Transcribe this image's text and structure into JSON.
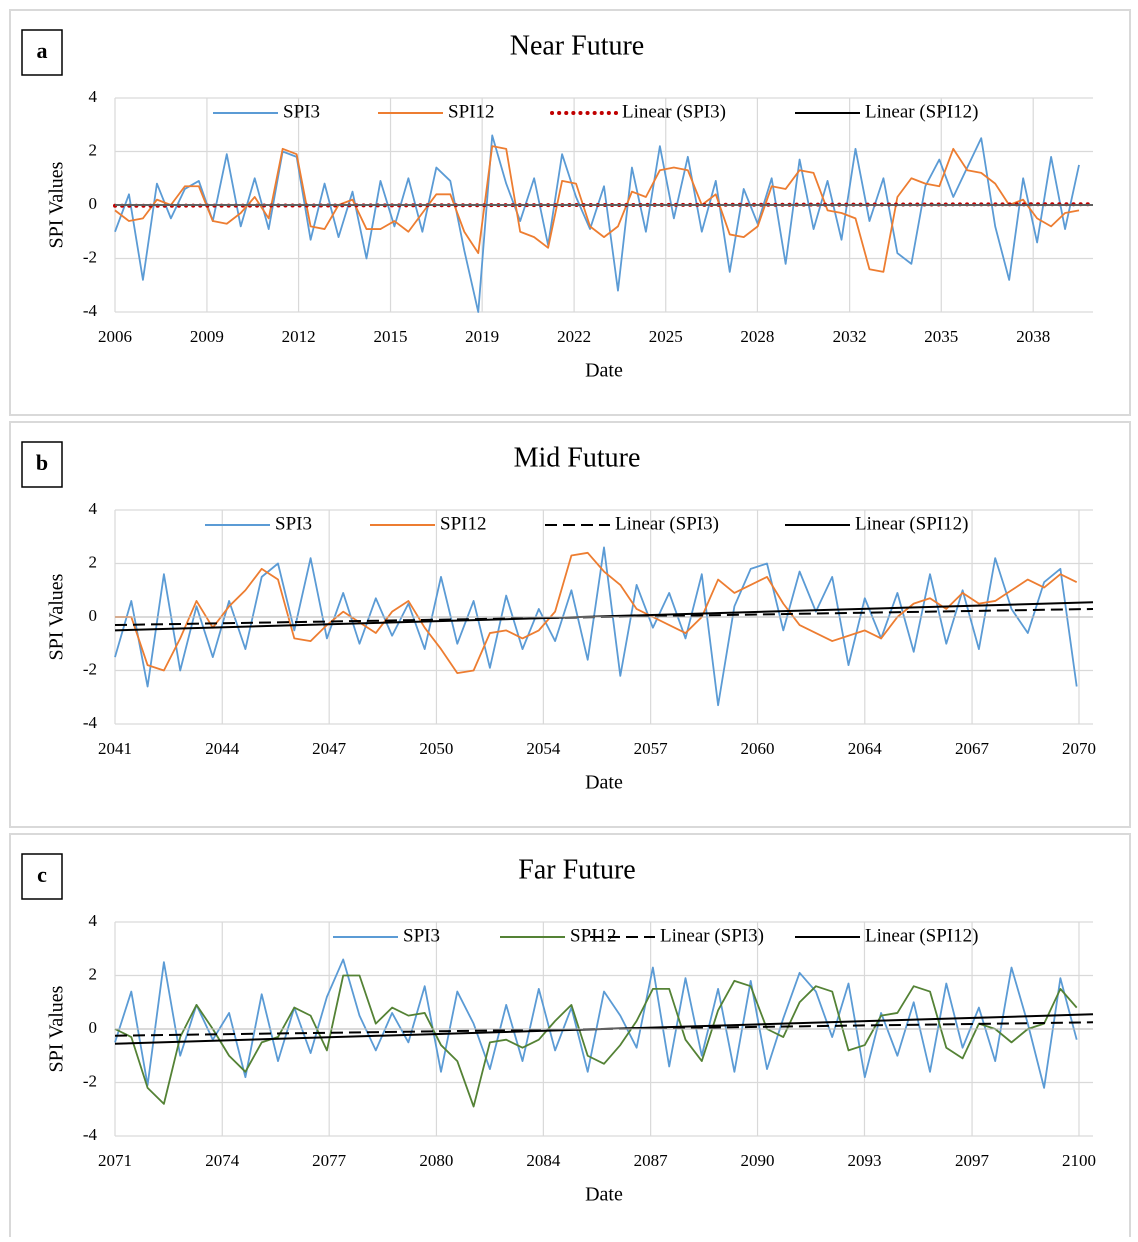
{
  "chart_data": [
    {
      "type": "line",
      "panel_label": "a",
      "title": "Near Future",
      "x_label": "Date",
      "y_label": "SPI Values",
      "xlim": [
        2006,
        2041
      ],
      "ylim": [
        -4,
        4
      ],
      "yticks": [
        -4,
        -2,
        0,
        2,
        4
      ],
      "grid": true,
      "xticks": [
        2006,
        {
          "value": 2009.29,
          "label": "2009"
        },
        {
          "value": 2012.57,
          "label": "2012"
        },
        {
          "value": 2015.86,
          "label": "2015"
        },
        {
          "value": 2019.14,
          "label": "2019"
        },
        {
          "value": 2022.43,
          "label": "2022"
        },
        {
          "value": 2025.71,
          "label": "2025"
        },
        {
          "value": 2028.99,
          "label": "2028"
        },
        {
          "value": 2032.29,
          "label": "2032"
        },
        {
          "value": 2035.57,
          "label": "2035"
        },
        {
          "value": 2038.86,
          "label": "2038"
        }
      ],
      "x": [
        2006.0,
        2006.5,
        2007.0,
        2007.5,
        2008.0,
        2008.5,
        2009.0,
        2009.5,
        2010.0,
        2010.5,
        2011.0,
        2011.5,
        2012.0,
        2012.5,
        2013.0,
        2013.5,
        2014.0,
        2014.5,
        2015.0,
        2015.5,
        2016.0,
        2016.5,
        2017.0,
        2017.5,
        2018.0,
        2018.5,
        2019.0,
        2019.5,
        2020.0,
        2020.5,
        2021.0,
        2021.5,
        2022.0,
        2022.5,
        2023.0,
        2023.5,
        2024.0,
        2024.5,
        2025.0,
        2025.5,
        2026.0,
        2026.5,
        2027.0,
        2027.5,
        2028.0,
        2028.5,
        2029.0,
        2029.5,
        2030.0,
        2030.5,
        2031.0,
        2031.5,
        2032.0,
        2032.5,
        2033.0,
        2033.5,
        2034.0,
        2034.5,
        2035.0,
        2035.5,
        2036.0,
        2036.5,
        2037.0,
        2037.5,
        2038.0,
        2038.5,
        2039.0,
        2039.5,
        2040.0,
        2040.5
      ],
      "series": [
        {
          "name": "SPI3",
          "color": "#5b9bd5",
          "dash": "solid",
          "values": [
            -1.0,
            0.4,
            -2.8,
            0.8,
            -0.5,
            0.6,
            0.9,
            -0.6,
            1.9,
            -0.8,
            1.0,
            -0.9,
            2.0,
            1.8,
            -1.3,
            0.8,
            -1.2,
            0.5,
            -2.0,
            0.9,
            -0.8,
            1.0,
            -1.0,
            1.4,
            0.9,
            -1.7,
            -4.0,
            2.6,
            0.8,
            -0.6,
            1.0,
            -1.5,
            1.9,
            0.3,
            -0.9,
            0.7,
            -3.2,
            1.4,
            -1.0,
            2.2,
            -0.5,
            1.8,
            -1.0,
            0.9,
            -2.5,
            0.6,
            -0.7,
            1.0,
            -2.2,
            1.7,
            -0.9,
            0.9,
            -1.3,
            2.1,
            -0.6,
            1.0,
            -1.8,
            -2.2,
            0.7,
            1.7,
            0.3,
            1.4,
            2.5,
            -0.8,
            -2.8,
            1.0,
            -1.4,
            1.8,
            -0.9,
            1.5
          ]
        },
        {
          "name": "SPI12",
          "color": "#ed7d31",
          "dash": "solid",
          "values": [
            -0.2,
            -0.6,
            -0.5,
            0.2,
            0.0,
            0.7,
            0.7,
            -0.6,
            -0.7,
            -0.3,
            0.3,
            -0.5,
            2.1,
            1.9,
            -0.8,
            -0.9,
            0.0,
            0.2,
            -0.9,
            -0.9,
            -0.6,
            -1.0,
            -0.3,
            0.4,
            0.4,
            -1.0,
            -1.8,
            2.2,
            2.1,
            -1.0,
            -1.2,
            -1.6,
            0.9,
            0.8,
            -0.8,
            -1.2,
            -0.8,
            0.5,
            0.3,
            1.3,
            1.4,
            1.3,
            0.0,
            0.4,
            -1.1,
            -1.2,
            -0.8,
            0.7,
            0.6,
            1.3,
            1.2,
            -0.2,
            -0.3,
            -0.5,
            -2.4,
            -2.5,
            0.3,
            1.0,
            0.8,
            0.7,
            2.1,
            1.3,
            1.2,
            0.8,
            0.0,
            0.2,
            -0.5,
            -0.8,
            -0.3,
            -0.2
          ]
        },
        {
          "name": "Linear (SPI3)",
          "color": "#c00000",
          "dash": "dotted",
          "x": [
            2006,
            2041
          ],
          "values": [
            -0.03,
            0.03
          ]
        },
        {
          "name": "Linear (SPI12)",
          "color": "#000000",
          "dash": "solid",
          "x": [
            2006,
            2041
          ],
          "values": [
            0.0,
            0.0
          ]
        }
      ]
    },
    {
      "type": "line",
      "panel_label": "b",
      "title": "Mid Future",
      "x_label": "Date",
      "y_label": "SPI Values",
      "xlim": [
        2041,
        2071
      ],
      "ylim": [
        -4,
        4
      ],
      "yticks": [
        -4,
        -2,
        0,
        2,
        4
      ],
      "grid": true,
      "xticks": [
        2041,
        {
          "value": 2044.29,
          "label": "2044"
        },
        {
          "value": 2047.57,
          "label": "2047"
        },
        {
          "value": 2050.86,
          "label": "2050"
        },
        {
          "value": 2054.14,
          "label": "2054"
        },
        {
          "value": 2057.43,
          "label": "2057"
        },
        {
          "value": 2060.71,
          "label": "2060"
        },
        2064,
        {
          "value": 2067.29,
          "label": "2067"
        },
        {
          "value": 2070.57,
          "label": "2070"
        }
      ],
      "x": [
        2041.0,
        2041.5,
        2042.0,
        2042.5,
        2043.0,
        2043.5,
        2044.0,
        2044.5,
        2045.0,
        2045.5,
        2046.0,
        2046.5,
        2047.0,
        2047.5,
        2048.0,
        2048.5,
        2049.0,
        2049.5,
        2050.0,
        2050.5,
        2051.0,
        2051.5,
        2052.0,
        2052.5,
        2053.0,
        2053.5,
        2054.0,
        2054.5,
        2055.0,
        2055.5,
        2056.0,
        2056.5,
        2057.0,
        2057.5,
        2058.0,
        2058.5,
        2059.0,
        2059.5,
        2060.0,
        2060.5,
        2061.0,
        2061.5,
        2062.0,
        2062.5,
        2063.0,
        2063.5,
        2064.0,
        2064.5,
        2065.0,
        2065.5,
        2066.0,
        2066.5,
        2067.0,
        2067.5,
        2068.0,
        2068.5,
        2069.0,
        2069.5,
        2070.0,
        2070.5
      ],
      "series": [
        {
          "name": "SPI3",
          "color": "#5b9bd5",
          "dash": "solid",
          "values": [
            -1.5,
            0.6,
            -2.6,
            1.6,
            -2.0,
            0.4,
            -1.5,
            0.6,
            -1.2,
            1.5,
            2.0,
            -0.5,
            2.2,
            -0.8,
            0.9,
            -1.0,
            0.7,
            -0.7,
            0.5,
            -1.2,
            1.5,
            -1.0,
            0.6,
            -1.9,
            0.8,
            -1.2,
            0.3,
            -0.9,
            1.0,
            -1.6,
            2.6,
            -2.2,
            1.2,
            -0.4,
            0.9,
            -0.8,
            1.6,
            -3.3,
            0.4,
            1.8,
            2.0,
            -0.5,
            1.7,
            0.2,
            1.5,
            -1.8,
            0.7,
            -0.8,
            0.9,
            -1.3,
            1.6,
            -1.0,
            1.0,
            -1.2,
            2.2,
            0.3,
            -0.6,
            1.3,
            1.8,
            -2.6
          ]
        },
        {
          "name": "SPI12",
          "color": "#ed7d31",
          "dash": "solid",
          "values": [
            0.0,
            0.0,
            -1.8,
            -2.0,
            -0.8,
            0.6,
            -0.4,
            0.4,
            1.0,
            1.8,
            1.4,
            -0.8,
            -0.9,
            -0.3,
            0.2,
            -0.2,
            -0.6,
            0.2,
            0.6,
            -0.4,
            -1.2,
            -2.1,
            -2.0,
            -0.6,
            -0.5,
            -0.8,
            -0.5,
            0.2,
            2.3,
            2.4,
            1.7,
            1.2,
            0.3,
            0.0,
            -0.3,
            -0.6,
            0.0,
            1.4,
            0.9,
            1.2,
            1.5,
            0.5,
            -0.3,
            -0.6,
            -0.9,
            -0.7,
            -0.5,
            -0.8,
            0.0,
            0.5,
            0.7,
            0.3,
            0.9,
            0.5,
            0.6,
            1.0,
            1.4,
            1.1,
            1.6,
            1.3
          ]
        },
        {
          "name": "Linear (SPI3)",
          "color": "#000000",
          "dash": "dashed",
          "x": [
            2041,
            2071
          ],
          "values": [
            -0.3,
            0.3
          ]
        },
        {
          "name": "Linear (SPI12)",
          "color": "#000000",
          "dash": "solid",
          "x": [
            2041,
            2071
          ],
          "values": [
            -0.5,
            0.55
          ]
        }
      ]
    },
    {
      "type": "line",
      "panel_label": "c",
      "title": "Far Future",
      "x_label": "Date",
      "y_label": "SPI Values",
      "xlim": [
        2071,
        2101
      ],
      "ylim": [
        -4,
        4
      ],
      "yticks": [
        -4,
        -2,
        0,
        2,
        4
      ],
      "grid": true,
      "xticks": [
        2071,
        {
          "value": 2074.29,
          "label": "2074"
        },
        {
          "value": 2077.57,
          "label": "2077"
        },
        {
          "value": 2080.86,
          "label": "2080"
        },
        {
          "value": 2084.14,
          "label": "2084"
        },
        {
          "value": 2087.43,
          "label": "2087"
        },
        {
          "value": 2090.71,
          "label": "2090"
        },
        {
          "value": 2093.99,
          "label": "2093"
        },
        {
          "value": 2097.29,
          "label": "2097"
        },
        {
          "value": 2100.57,
          "label": "2100"
        }
      ],
      "x": [
        2071.0,
        2071.5,
        2072.0,
        2072.5,
        2073.0,
        2073.5,
        2074.0,
        2074.5,
        2075.0,
        2075.5,
        2076.0,
        2076.5,
        2077.0,
        2077.5,
        2078.0,
        2078.5,
        2079.0,
        2079.5,
        2080.0,
        2080.5,
        2081.0,
        2081.5,
        2082.0,
        2082.5,
        2083.0,
        2083.5,
        2084.0,
        2084.5,
        2085.0,
        2085.5,
        2086.0,
        2086.5,
        2087.0,
        2087.5,
        2088.0,
        2088.5,
        2089.0,
        2089.5,
        2090.0,
        2090.5,
        2091.0,
        2091.5,
        2092.0,
        2092.5,
        2093.0,
        2093.5,
        2094.0,
        2094.5,
        2095.0,
        2095.5,
        2096.0,
        2096.5,
        2097.0,
        2097.5,
        2098.0,
        2098.5,
        2099.0,
        2099.5,
        2100.0,
        2100.5
      ],
      "series": [
        {
          "name": "SPI3",
          "color": "#5b9bd5",
          "dash": "solid",
          "values": [
            -0.5,
            1.4,
            -2.1,
            2.5,
            -1.0,
            0.9,
            -0.4,
            0.6,
            -1.8,
            1.3,
            -1.2,
            0.8,
            -0.9,
            1.2,
            2.6,
            0.5,
            -0.8,
            0.6,
            -0.5,
            1.6,
            -1.6,
            1.4,
            0.2,
            -1.5,
            0.9,
            -1.2,
            1.5,
            -0.8,
            0.8,
            -1.6,
            1.4,
            0.5,
            -0.7,
            2.3,
            -1.4,
            1.9,
            -1.0,
            1.5,
            -1.6,
            1.8,
            -1.5,
            0.4,
            2.1,
            1.4,
            -0.3,
            1.7,
            -1.8,
            0.6,
            -1.0,
            1.0,
            -1.6,
            1.7,
            -0.7,
            0.8,
            -1.2,
            2.3,
            0.2,
            -2.2,
            1.9,
            -0.4
          ]
        },
        {
          "name": "SPI12",
          "color": "#548235",
          "dash": "solid",
          "values": [
            0.0,
            -0.3,
            -2.2,
            -2.8,
            -0.3,
            0.9,
            0.0,
            -1.0,
            -1.6,
            -0.5,
            -0.3,
            0.8,
            0.5,
            -0.8,
            2.0,
            2.0,
            0.2,
            0.8,
            0.5,
            0.6,
            -0.6,
            -1.2,
            -2.9,
            -0.5,
            -0.4,
            -0.7,
            -0.4,
            0.3,
            0.9,
            -1.0,
            -1.3,
            -0.6,
            0.3,
            1.5,
            1.5,
            -0.4,
            -1.2,
            0.7,
            1.8,
            1.6,
            0.0,
            -0.3,
            1.0,
            1.6,
            1.4,
            -0.8,
            -0.6,
            0.5,
            0.6,
            1.6,
            1.4,
            -0.7,
            -1.1,
            0.2,
            0.0,
            -0.5,
            0.0,
            0.2,
            1.5,
            0.8
          ]
        },
        {
          "name": "Linear (SPI3)",
          "color": "#000000",
          "dash": "dashed",
          "x": [
            2071,
            2101
          ],
          "values": [
            -0.25,
            0.25
          ]
        },
        {
          "name": "Linear (SPI12)",
          "color": "#000000",
          "dash": "solid",
          "x": [
            2071,
            2101
          ],
          "values": [
            -0.55,
            0.55
          ]
        }
      ]
    }
  ]
}
